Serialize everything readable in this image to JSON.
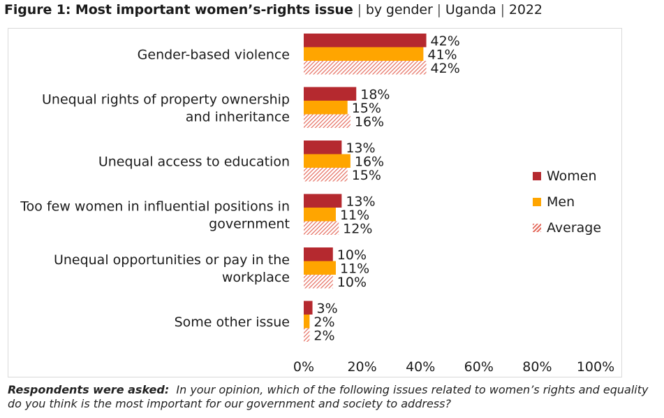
{
  "title": {
    "main": "Figure 1: Most important women’s-rights issue",
    "by": "by gender",
    "country": "Uganda",
    "year": "2022",
    "separator": "|"
  },
  "footnote": {
    "label": "Respondents were asked:",
    "text": "In your opinion, which of the following issues related to women’s rights and equality do you think is the most important for our government and society to address?"
  },
  "colors": {
    "women": "#b5292f",
    "men": "#ffa500",
    "average_hatch": "#e46a5c"
  },
  "chart_data": {
    "type": "bar",
    "orientation": "horizontal",
    "title": "Most important women’s-rights issue",
    "categories": [
      [
        "Gender-based violence"
      ],
      [
        "Unequal rights of property ownership",
        "and inheritance"
      ],
      [
        "Unequal access to education"
      ],
      [
        "Too few women in influential positions in",
        "government"
      ],
      [
        "Unequal opportunities or pay in the",
        "workplace"
      ],
      [
        "Some other issue"
      ]
    ],
    "series": [
      {
        "name": "Women",
        "values": [
          42,
          18,
          13,
          13,
          10,
          3
        ],
        "labels": [
          "42%",
          "18%",
          "13%",
          "13%",
          "10%",
          "3%"
        ]
      },
      {
        "name": "Men",
        "values": [
          41,
          15,
          16,
          11,
          11,
          2
        ],
        "labels": [
          "41%",
          "15%",
          "16%",
          "11%",
          "11%",
          "2%"
        ]
      },
      {
        "name": "Average",
        "values": [
          42,
          16,
          15,
          12,
          10,
          2
        ],
        "labels": [
          "42%",
          "16%",
          "15%",
          "12%",
          "10%",
          "2%"
        ]
      }
    ],
    "xlim": [
      0,
      100
    ],
    "xticks": [
      0,
      20,
      40,
      60,
      80,
      100
    ],
    "xtick_labels": [
      "0%",
      "20%",
      "40%",
      "60%",
      "80%",
      "100%"
    ],
    "legend_position": "right",
    "grid": false
  }
}
